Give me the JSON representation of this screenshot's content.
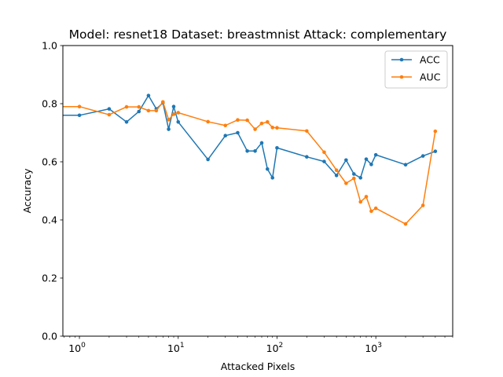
{
  "chart_data": {
    "type": "line",
    "title": "Model: resnet18 Dataset: breastmnist Attack: complementary",
    "xlabel": "Attacked Pixels",
    "ylabel": "Accuracy",
    "xscale": "log",
    "xlim": [
      0.68,
      6000
    ],
    "ylim": [
      0.0,
      1.0
    ],
    "xticks": [
      {
        "value": 1,
        "base": "10",
        "exp": "0"
      },
      {
        "value": 10,
        "base": "10",
        "exp": "1"
      },
      {
        "value": 100,
        "base": "10",
        "exp": "2"
      },
      {
        "value": 1000,
        "base": "10",
        "exp": "3"
      }
    ],
    "yticks": [
      "0.0",
      "0.2",
      "0.4",
      "0.6",
      "0.8",
      "1.0"
    ],
    "grid": false,
    "legend_position": "top-right",
    "series": [
      {
        "name": "ACC",
        "color": "#1f77b4",
        "x": [
          0.5,
          1,
          2,
          3,
          4,
          5,
          6,
          7,
          8,
          9,
          10,
          20,
          30,
          40,
          50,
          60,
          70,
          80,
          90,
          100,
          200,
          300,
          400,
          500,
          600,
          700,
          800,
          900,
          1000,
          2000,
          3000,
          4000
        ],
        "y": [
          0.76,
          0.76,
          0.782,
          0.737,
          0.773,
          0.828,
          0.782,
          0.803,
          0.712,
          0.79,
          0.737,
          0.608,
          0.69,
          0.7,
          0.637,
          0.637,
          0.665,
          0.575,
          0.545,
          0.648,
          0.617,
          0.601,
          0.553,
          0.606,
          0.558,
          0.545,
          0.609,
          0.591,
          0.624,
          0.59,
          0.62,
          0.636
        ]
      },
      {
        "name": "AUC",
        "color": "#ff7f0e",
        "x": [
          0.5,
          1,
          2,
          3,
          4,
          5,
          6,
          7,
          8,
          9,
          10,
          20,
          30,
          40,
          50,
          60,
          70,
          80,
          90,
          100,
          200,
          300,
          400,
          500,
          600,
          700,
          800,
          900,
          1000,
          2000,
          3000,
          4000
        ],
        "y": [
          0.79,
          0.79,
          0.762,
          0.789,
          0.789,
          0.776,
          0.776,
          0.806,
          0.745,
          0.764,
          0.769,
          0.738,
          0.725,
          0.744,
          0.743,
          0.712,
          0.732,
          0.737,
          0.718,
          0.717,
          0.706,
          0.633,
          0.571,
          0.526,
          0.543,
          0.462,
          0.48,
          0.43,
          0.44,
          0.386,
          0.45,
          0.705
        ]
      }
    ]
  }
}
